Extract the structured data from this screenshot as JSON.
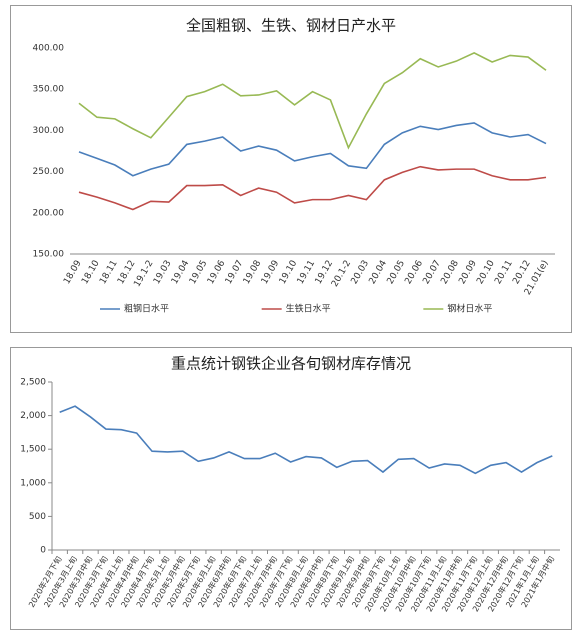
{
  "chart_data": [
    {
      "type": "line",
      "title": "全国粗钢、生铁、钢材日产水平",
      "categories": [
        "18.09",
        "18.10",
        "18.11",
        "18.12",
        "19.1-2",
        "19.03",
        "19.04",
        "19.05",
        "19.06",
        "19.07",
        "19.08",
        "19.09",
        "19.10",
        "19.11",
        "19.12",
        "20.1-2",
        "20.03",
        "20.04",
        "20.05",
        "20.06",
        "20.07",
        "20.08",
        "20.09",
        "20.10",
        "20.11",
        "20.12",
        "21.01(e)"
      ],
      "series": [
        {
          "name": "粗钢日水平",
          "color": "#4a7ebb",
          "values": [
            274,
            266,
            258,
            245,
            253,
            259,
            283,
            287,
            292,
            275,
            281,
            276,
            263,
            268,
            272,
            257,
            254,
            283,
            297,
            305,
            301,
            306,
            309,
            297,
            292,
            295,
            284
          ]
        },
        {
          "name": "生铁日水平",
          "color": "#be4b48",
          "values": [
            225,
            219,
            212,
            204,
            214,
            213,
            233,
            233,
            234,
            221,
            230,
            225,
            212,
            216,
            216,
            221,
            216,
            240,
            249,
            256,
            252,
            253,
            253,
            245,
            240,
            240,
            243
          ]
        },
        {
          "name": "钢材日水平",
          "color": "#98b954",
          "values": [
            333,
            316,
            314,
            302,
            291,
            316,
            341,
            347,
            356,
            342,
            343,
            348,
            331,
            347,
            337,
            279,
            320,
            357,
            370,
            387,
            377,
            384,
            394,
            383,
            391,
            389,
            373
          ]
        }
      ],
      "ylim": [
        150,
        400
      ],
      "yticks": [
        {
          "value": 150,
          "label": "150.00"
        },
        {
          "value": 200,
          "label": "200.00"
        },
        {
          "value": 250,
          "label": "250.00"
        },
        {
          "value": 300,
          "label": "300.00"
        },
        {
          "value": 350,
          "label": "350.00"
        },
        {
          "value": 400,
          "label": "400.00"
        }
      ],
      "legend": "bottom"
    },
    {
      "type": "line",
      "title": "重点统计钢铁企业各旬钢材库存情况",
      "categories": [
        "2020年2月下旬",
        "2020年3月上旬",
        "2020年3月中旬",
        "2020年3月下旬",
        "2020年4月上旬",
        "2020年4月中旬",
        "2020年4月下旬",
        "2020年5月上旬",
        "2020年5月中旬",
        "2020年5月下旬",
        "2020年6月上旬",
        "2020年6月中旬",
        "2020年6月下旬",
        "2020年7月上旬",
        "2020年7月中旬",
        "2020年7月下旬",
        "2020年8月上旬",
        "2020年8月中旬",
        "2020年8月下旬",
        "2020年9月上旬",
        "2020年9月中旬",
        "2020年9月下旬",
        "2020年10月上旬",
        "2020年10月中旬",
        "2020年10月下旬",
        "2020年11月上旬",
        "2020年11月中旬",
        "2020年11月下旬",
        "2020年12月上旬",
        "2020年12月中旬",
        "2020年12月下旬",
        "2021年1月上旬",
        "2021年1月中旬"
      ],
      "values": [
        2050,
        2140,
        1980,
        1800,
        1790,
        1740,
        1470,
        1460,
        1470,
        1320,
        1370,
        1460,
        1360,
        1360,
        1440,
        1310,
        1390,
        1370,
        1230,
        1320,
        1330,
        1160,
        1350,
        1360,
        1220,
        1280,
        1260,
        1140,
        1260,
        1300,
        1160,
        1300,
        1400
      ],
      "color": "#4a7ebb",
      "ylim": [
        0,
        2500
      ],
      "yticks": [
        0,
        {
          "value": 500,
          "label": "500"
        },
        {
          "value": 1000,
          "label": "1,000"
        },
        {
          "value": 1500,
          "label": "1,500"
        },
        {
          "value": 2000,
          "label": "2,000"
        },
        {
          "value": 2500,
          "label": "2,500"
        }
      ]
    }
  ]
}
